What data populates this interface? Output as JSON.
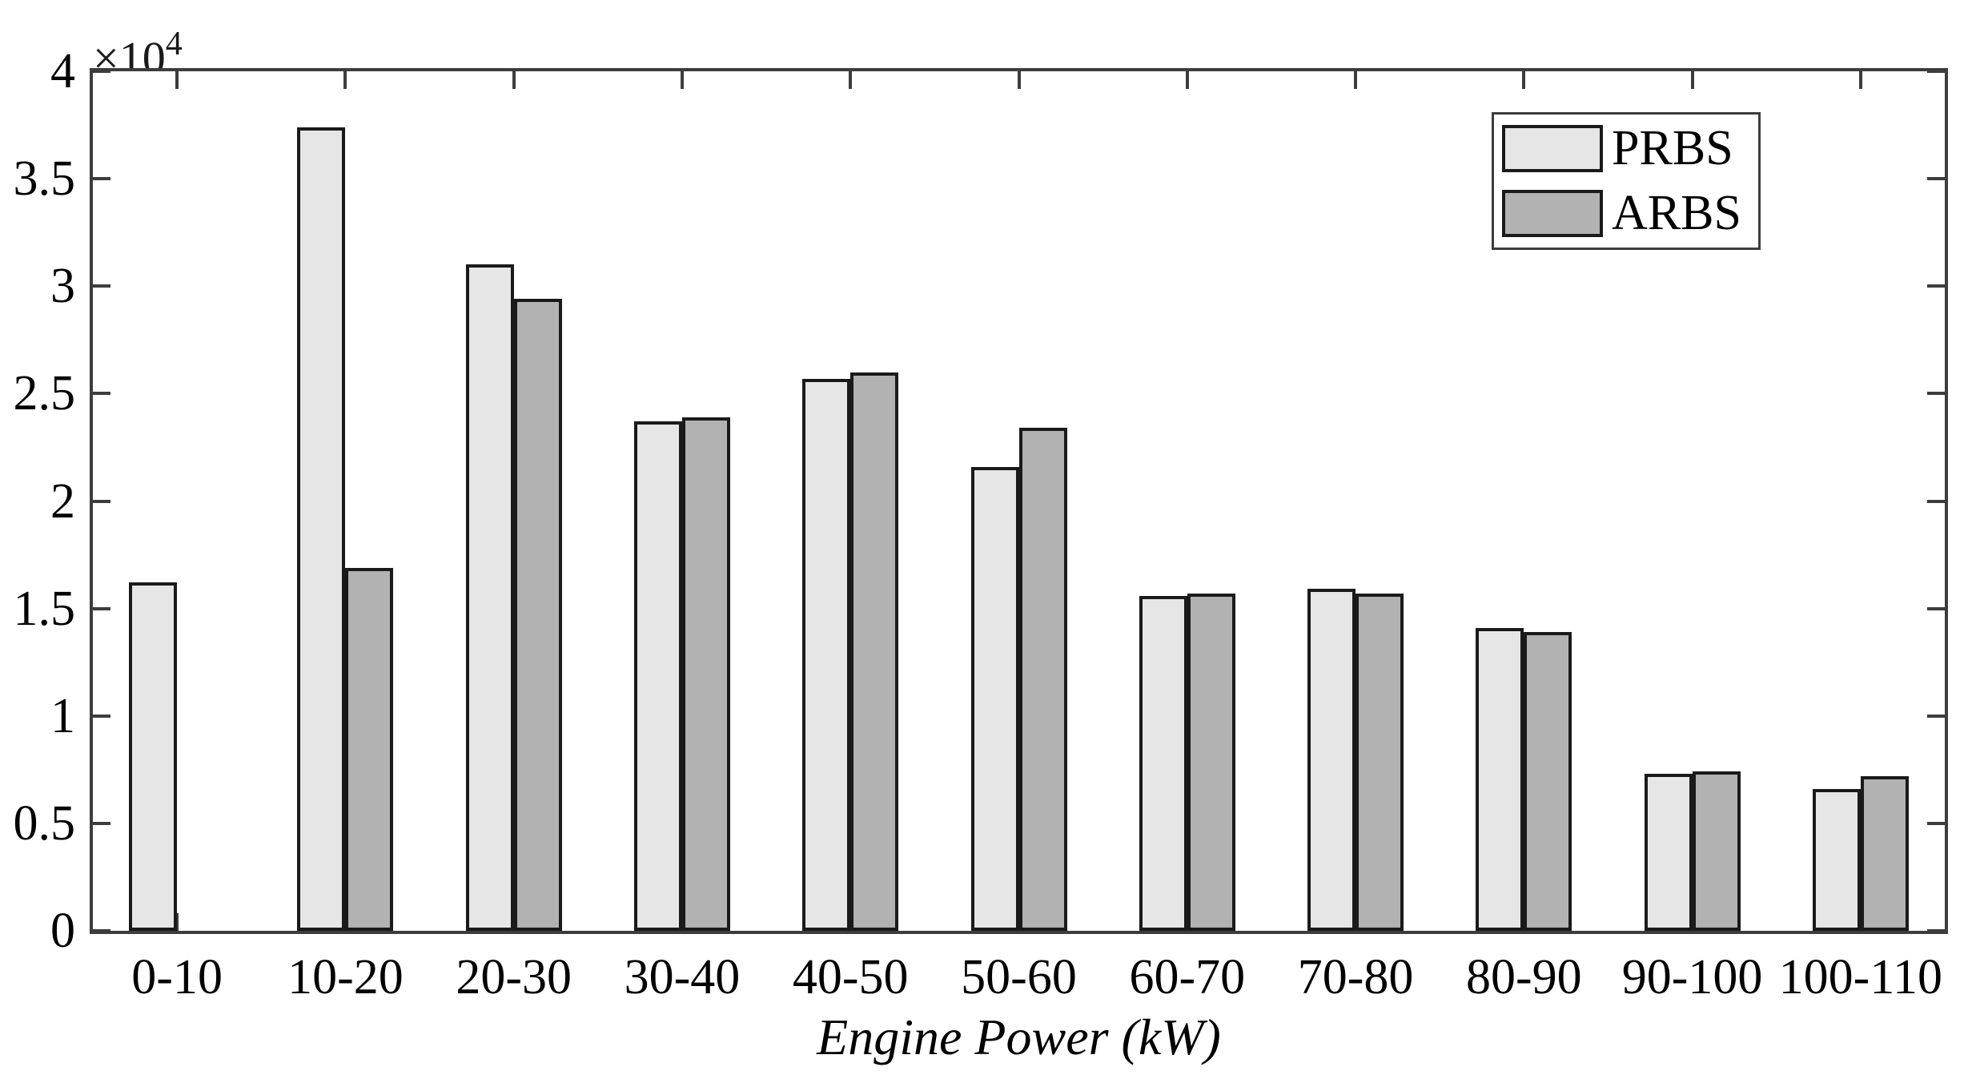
{
  "chart_data": {
    "type": "bar",
    "title": "",
    "xlabel": "Engine Power (kW)",
    "ylabel": "",
    "y_multiplier_base": "×10",
    "y_multiplier_exponent": "4",
    "categories": [
      "0-10",
      "10-20",
      "20-30",
      "30-40",
      "40-50",
      "50-60",
      "60-70",
      "70-80",
      "80-90",
      "90-100",
      "100-110"
    ],
    "series": [
      {
        "name": "PRBS",
        "color": "#e6e6e6",
        "values": [
          16200,
          37400,
          31000,
          23700,
          25700,
          21600,
          15600,
          15900,
          14100,
          7300,
          6600
        ]
      },
      {
        "name": "ARBS",
        "color": "#b2b2b2",
        "values": [
          0,
          16900,
          29400,
          23900,
          26000,
          23400,
          15700,
          15700,
          13900,
          7400,
          7200
        ]
      }
    ],
    "ylim": [
      0,
      40000
    ],
    "ytick_step": 5000,
    "ytick_labels": [
      "0",
      "0.5",
      "1",
      "1.5",
      "2",
      "2.5",
      "3",
      "3.5",
      "4"
    ],
    "legend_position": "top-right",
    "grid": false,
    "bar_edge_color": "#1a1a1a",
    "axis_color": "#3d3d3d",
    "background_color": "#ffffff"
  }
}
